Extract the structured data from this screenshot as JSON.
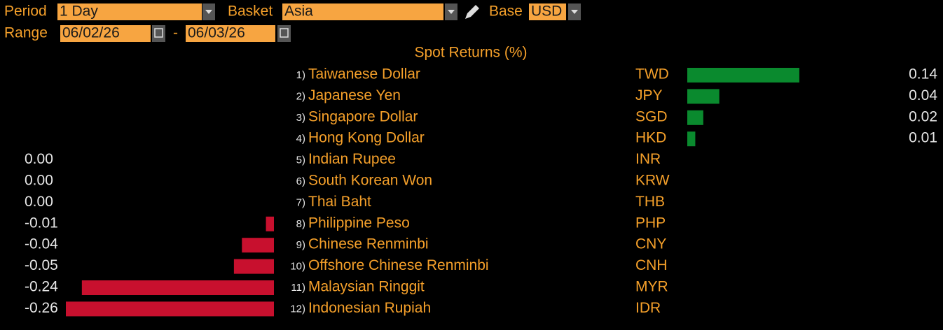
{
  "controls": {
    "period_label": "Period",
    "period": "1 Day",
    "basket_label": "Basket",
    "basket": "Asia",
    "base_label": "Base",
    "base": "USD",
    "range_label": "Range",
    "range_start": "06/02/26",
    "range_separator": "-",
    "range_end": "06/03/26"
  },
  "chart_data": {
    "type": "bar",
    "title": "Spot Returns (%)",
    "ranks": [
      "1)",
      "2)",
      "3)",
      "4)",
      "5)",
      "6)",
      "7)",
      "8)",
      "9)",
      "10)",
      "11)",
      "12)"
    ],
    "categories": [
      "Taiwanese Dollar",
      "Japanese Yen",
      "Singapore Dollar",
      "Hong Kong Dollar",
      "Indian Rupee",
      "South Korean Won",
      "Thai Baht",
      "Philippine Peso",
      "Chinese Renminbi",
      "Offshore Chinese Renminbi",
      "Malaysian Ringgit",
      "Indonesian Rupiah"
    ],
    "codes": [
      "TWD",
      "JPY",
      "SGD",
      "HKD",
      "INR",
      "KRW",
      "THB",
      "PHP",
      "CNY",
      "CNH",
      "MYR",
      "IDR"
    ],
    "values": [
      0.14,
      0.04,
      0.02,
      0.01,
      0,
      0,
      0,
      -0.01,
      -0.04,
      -0.05,
      -0.24,
      -0.26
    ],
    "value_labels": [
      "0.14",
      "0.04",
      "0.02",
      "0.01",
      "0.00",
      "0.00",
      "0.00",
      "-0.01",
      "-0.04",
      "-0.05",
      "-0.24",
      "-0.26"
    ],
    "positive_color": "#0a8a2e",
    "negative_color": "#c8102e"
  }
}
